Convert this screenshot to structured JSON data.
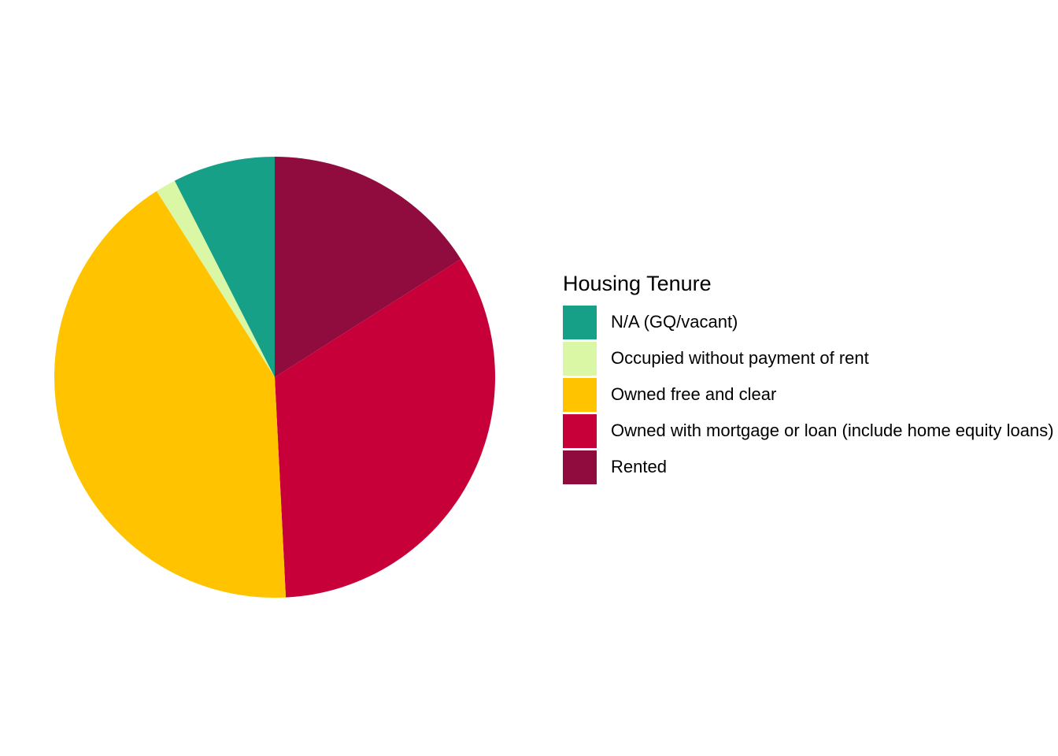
{
  "chart_data": {
    "type": "pie",
    "title": "",
    "legend": {
      "title": "Housing Tenure",
      "position": "right"
    },
    "start": "12 o'clock",
    "direction": "clockwise",
    "slice_order": [
      "Rented",
      "Owned with mortgage or loan (include home equity loans)",
      "Owned free and clear",
      "Occupied without payment of rent",
      "N/A (GQ/vacant)"
    ],
    "categories": [
      "N/A (GQ/vacant)",
      "Occupied without payment of rent",
      "Owned free and clear",
      "Owned with mortgage or loan (include home equity loans)",
      "Rented"
    ],
    "values": [
      7.5,
      1.5,
      41.8,
      33.2,
      16.0
    ],
    "unit": "percent of households (estimated)",
    "colors": [
      "#17A088",
      "#DAF7A6",
      "#FFC300",
      "#C70039",
      "#900C3F"
    ]
  }
}
